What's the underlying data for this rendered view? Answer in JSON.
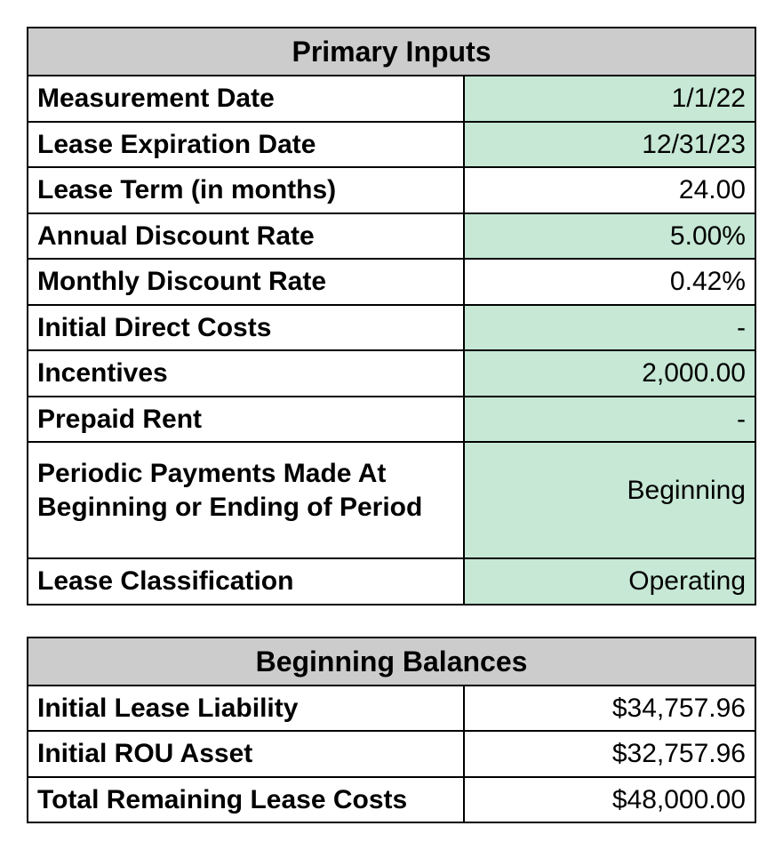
{
  "primary_inputs": {
    "header": "Primary Inputs",
    "rows": [
      {
        "label": "Measurement Date",
        "value": "1/1/22",
        "highlighted": true
      },
      {
        "label": "Lease Expiration Date",
        "value": "12/31/23",
        "highlighted": true
      },
      {
        "label": "Lease Term (in months)",
        "value": "24.00",
        "highlighted": false
      },
      {
        "label": "Annual Discount Rate",
        "value": "5.00%",
        "highlighted": true
      },
      {
        "label": "Monthly Discount Rate",
        "value": "0.42%",
        "highlighted": false
      },
      {
        "label": "Initial Direct Costs",
        "value": "-",
        "highlighted": true
      },
      {
        "label": "Incentives",
        "value": "2,000.00",
        "highlighted": true
      },
      {
        "label": "Prepaid Rent",
        "value": "-",
        "highlighted": true
      },
      {
        "label": "Periodic Payments Made At Beginning or Ending of Period",
        "value": "Beginning",
        "highlighted": true,
        "multiline": true
      },
      {
        "label": "Lease Classification",
        "value": "Operating",
        "highlighted": true
      }
    ]
  },
  "beginning_balances": {
    "header": "Beginning Balances",
    "rows": [
      {
        "label": "Initial Lease Liability",
        "value": "$34,757.96",
        "highlighted": false
      },
      {
        "label": "Initial ROU Asset",
        "value": "$32,757.96",
        "highlighted": false
      },
      {
        "label": "Total Remaining Lease Costs",
        "value": "$48,000.00",
        "highlighted": false
      }
    ]
  },
  "styling": {
    "header_bg": "#cccccc",
    "highlight_bg": "#c6e8d5",
    "default_bg": "#ffffff",
    "border_color": "#000000",
    "font_family": "Helvetica, Arial, sans-serif",
    "base_font_size": 30,
    "header_font_size": 32
  }
}
